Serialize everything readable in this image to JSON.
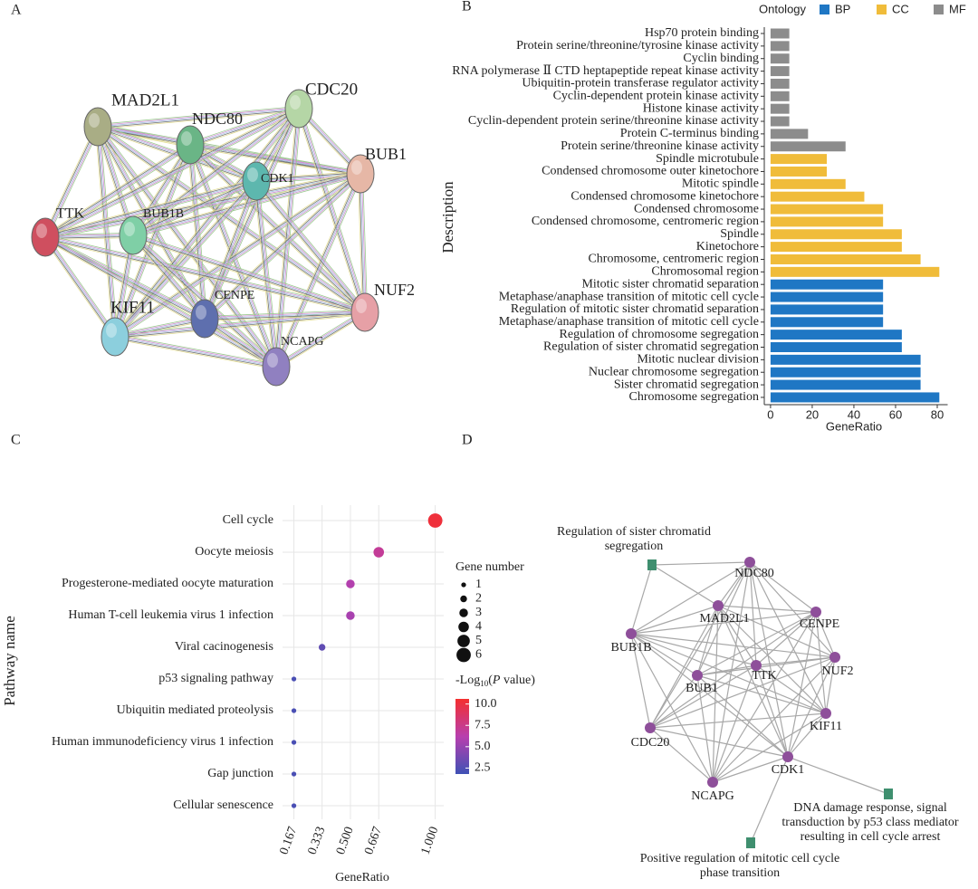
{
  "panel_labels": [
    "A",
    "B",
    "C",
    "D"
  ],
  "network_a": {
    "nodes": [
      {
        "label": "MAD2L1",
        "color": "#a9ad85"
      },
      {
        "label": "NDC80",
        "color": "#6ab586"
      },
      {
        "label": "CDC20",
        "color": "#b5d6a6"
      },
      {
        "label": "BUB1",
        "color": "#e6b7a6"
      },
      {
        "label": "CDK1",
        "color": "#5db7ae"
      },
      {
        "label": "TTK",
        "color": "#cf4f5f"
      },
      {
        "label": "BUB1B",
        "color": "#7fcfa6"
      },
      {
        "label": "KIF11",
        "color": "#8ccfdd"
      },
      {
        "label": "CENPE",
        "color": "#5e6fae"
      },
      {
        "label": "NCAPG",
        "color": "#9080c0"
      },
      {
        "label": "NUF2",
        "color": "#e6a0a6"
      }
    ]
  },
  "chart_data": [
    {
      "type": "bar",
      "legend_title": "Ontology",
      "x_label": "GeneRatio",
      "y_label": "Description",
      "categories": [
        "Hsp70 protein binding",
        "Protein serine/threonine/tyrosine kinase activity",
        "Cyclin binding",
        "RNA polymerase Ⅱ CTD heptapeptide repeat kinase activity",
        "Ubiquitin-protein transferase regulator activity",
        "Cyclin-dependent protein kinase activity",
        "Histone kinase activity",
        "Cyclin-dependent protein serine/threonine kinase activity",
        "Protein C-terminus binding",
        "Protein serine/threonine kinase activity",
        "Spindle microtubule",
        "Condensed chromosome outer kinetochore",
        "Mitotic spindle",
        "Condensed chromosome kinetochore",
        "Condensed chromosome",
        "Condensed chromosome, centromeric region",
        "Spindle",
        "Kinetochore",
        "Chromosome, centromeric region",
        "Chromosomal region",
        "Mitotic sister chromatid separation",
        "Metaphase/anaphase transition of mitotic cell cycle",
        "Regulation of mitotic sister chromatid separation",
        "Metaphase/anaphase transition of mitotic cell cycle",
        "Regulation of chromosome segregation",
        "Regulation of sister chromatid segregation",
        "Mitotic nuclear division",
        "Nuclear chromosome segregation",
        "Sister chromatid segregation",
        "Chromosome segregation"
      ],
      "series": [
        {
          "name": "BP",
          "color": "#1f77c4",
          "values": [
            null,
            null,
            null,
            null,
            null,
            null,
            null,
            null,
            null,
            null,
            null,
            null,
            null,
            null,
            null,
            null,
            null,
            null,
            null,
            null,
            54,
            54,
            54,
            54,
            63,
            63,
            72,
            72,
            72,
            81
          ]
        },
        {
          "name": "CC",
          "color": "#f0bc3a",
          "values": [
            null,
            null,
            null,
            null,
            null,
            null,
            null,
            null,
            null,
            null,
            27,
            27,
            36,
            45,
            54,
            54,
            63,
            63,
            72,
            81,
            null,
            null,
            null,
            null,
            null,
            null,
            null,
            null,
            null,
            null
          ]
        },
        {
          "name": "MF",
          "color": "#8c8c8c",
          "values": [
            9,
            9,
            9,
            9,
            9,
            9,
            9,
            9,
            18,
            36,
            null,
            null,
            null,
            null,
            null,
            null,
            null,
            null,
            null,
            null,
            null,
            null,
            null,
            null,
            null,
            null,
            null,
            null,
            null,
            null
          ]
        }
      ],
      "xlim": [
        -3,
        85
      ],
      "xticks": [
        0,
        20,
        40,
        60,
        80
      ]
    },
    {
      "type": "scatter",
      "x_label": "GeneRatio",
      "y_label": "Pathway name",
      "categories": [
        "Cell cycle",
        "Oocyte meiosis",
        "Progesterone-mediated oocyte maturation",
        "Human T-cell leukemia virus 1 infection",
        "Viral cacinogenesis",
        "p53 signaling pathway",
        "Ubiquitin mediated proteolysis",
        "Human immunodeficiency virus 1 infection",
        "Gap junction",
        "Cellular senescence"
      ],
      "x": [
        1.0,
        0.667,
        0.5,
        0.5,
        0.333,
        0.167,
        0.167,
        0.167,
        0.167,
        0.167
      ],
      "sizes": [
        6,
        4,
        3,
        3,
        2,
        1,
        1,
        1,
        1,
        1
      ],
      "color_values": [
        10.2,
        7.0,
        6.0,
        5.6,
        3.0,
        2.2,
        2.2,
        2.2,
        2.2,
        2.2
      ],
      "xlim": [
        0.1,
        1.05
      ],
      "xticks": [
        0.167,
        0.333,
        {
          "value": 0.5,
          "label": "0.500"
        },
        0.667,
        {
          "value": 1,
          "label": "1.000"
        }
      ],
      "grid": true,
      "size_legend": {
        "title": "Gene number",
        "values": [
          1,
          2,
          3,
          4,
          5,
          6
        ]
      },
      "color_legend": {
        "title_parts": [
          "-Log",
          "10",
          "(",
          "P",
          " value)"
        ],
        "ticks": [
          {
            "value": 10,
            "label": "10.0"
          },
          7.5,
          {
            "value": 5,
            "label": "5.0"
          },
          2.5
        ]
      },
      "clim": [
        1.8,
        10.6
      ],
      "colormap": [
        "#3f51b5",
        "#b83fae",
        "#f42f2f"
      ]
    }
  ],
  "network_d": {
    "gene_color": "#8e4f9a",
    "term_color": "#3f8f6f",
    "gene_nodes": [
      "NDC80",
      "MAD2L1",
      "CENPE",
      "BUB1B",
      "NUF2",
      "TTK",
      "BUB1",
      "KIF11",
      "CDC20",
      "CDK1",
      "NCAPG"
    ],
    "term_nodes": [
      {
        "lines": [
          "Regulation of sister chromatid",
          "segregation"
        ]
      },
      {
        "lines": [
          "DNA damage response, signal",
          "transduction by p53 class mediator",
          "resulting in cell cycle arrest"
        ]
      },
      {
        "lines": [
          "Positive regulation of mitotic cell cycle",
          "phase transition"
        ]
      }
    ]
  }
}
